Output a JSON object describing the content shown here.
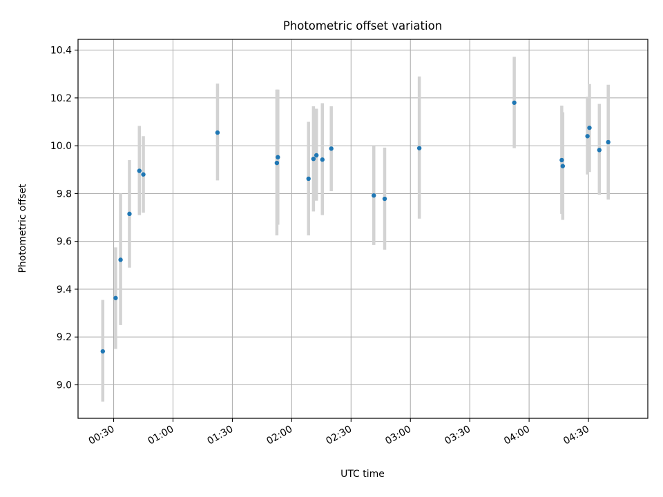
{
  "chart_data": {
    "type": "scatter",
    "title": "Photometric offset variation",
    "xlabel": "UTC time",
    "ylabel": "Photometric offset",
    "x_tick_labels": [
      "00:30",
      "01:00",
      "01:30",
      "02:00",
      "02:30",
      "03:00",
      "03:30",
      "04:00",
      "04:30"
    ],
    "y_tick_labels": [
      "9.0",
      "9.2",
      "9.4",
      "9.6",
      "9.8",
      "10.0",
      "10.2",
      "10.4"
    ],
    "x_ticks": [
      "00:30",
      "01:00",
      "01:30",
      "02:00",
      "02:30",
      "03:00",
      "03:30",
      "04:00",
      "04:30"
    ],
    "y_ticks": [
      9.0,
      9.2,
      9.4,
      9.6,
      9.8,
      10.0,
      10.2,
      10.4
    ],
    "xlim": [
      "00:12",
      "05:00"
    ],
    "ylim": [
      8.86,
      10.445
    ],
    "grid": true,
    "colors": {
      "points": "#1f77b4",
      "error_bars": "#d3d3d3",
      "grid": "#b0b0b0"
    },
    "series": [
      {
        "points": [
          {
            "t": "00:24:30",
            "y": 9.14,
            "lo": 8.93,
            "hi": 9.355
          },
          {
            "t": "00:31:00",
            "y": 9.363,
            "lo": 9.15,
            "hi": 9.575
          },
          {
            "t": "00:33:30",
            "y": 9.523,
            "lo": 9.25,
            "hi": 9.8
          },
          {
            "t": "00:38:00",
            "y": 9.715,
            "lo": 9.49,
            "hi": 9.94
          },
          {
            "t": "00:43:00",
            "y": 9.895,
            "lo": 9.71,
            "hi": 10.083
          },
          {
            "t": "00:45:00",
            "y": 9.88,
            "lo": 9.72,
            "hi": 10.04
          },
          {
            "t": "01:22:30",
            "y": 10.055,
            "lo": 9.855,
            "hi": 10.26
          },
          {
            "t": "01:52:30",
            "y": 9.928,
            "lo": 9.625,
            "hi": 10.235
          },
          {
            "t": "01:53:00",
            "y": 9.952,
            "lo": 9.67,
            "hi": 10.235
          },
          {
            "t": "02:08:30",
            "y": 9.862,
            "lo": 9.625,
            "hi": 10.1
          },
          {
            "t": "02:11:00",
            "y": 9.945,
            "lo": 9.725,
            "hi": 10.165
          },
          {
            "t": "02:12:30",
            "y": 9.96,
            "lo": 9.77,
            "hi": 10.155
          },
          {
            "t": "02:15:30",
            "y": 9.942,
            "lo": 9.71,
            "hi": 10.178
          },
          {
            "t": "02:20:00",
            "y": 9.988,
            "lo": 9.81,
            "hi": 10.165
          },
          {
            "t": "02:41:30",
            "y": 9.792,
            "lo": 9.585,
            "hi": 10.0
          },
          {
            "t": "02:47:00",
            "y": 9.778,
            "lo": 9.565,
            "hi": 9.992
          },
          {
            "t": "03:04:30",
            "y": 9.99,
            "lo": 9.695,
            "hi": 10.29
          },
          {
            "t": "03:52:30",
            "y": 10.18,
            "lo": 9.99,
            "hi": 10.372
          },
          {
            "t": "04:16:30",
            "y": 9.94,
            "lo": 9.715,
            "hi": 10.168
          },
          {
            "t": "04:17:00",
            "y": 9.915,
            "lo": 9.69,
            "hi": 10.14
          },
          {
            "t": "04:29:30",
            "y": 10.04,
            "lo": 9.88,
            "hi": 10.205
          },
          {
            "t": "04:30:30",
            "y": 10.075,
            "lo": 9.89,
            "hi": 10.258
          },
          {
            "t": "04:35:30",
            "y": 9.982,
            "lo": 9.795,
            "hi": 10.175
          },
          {
            "t": "04:40:00",
            "y": 10.015,
            "lo": 9.775,
            "hi": 10.255
          }
        ]
      }
    ]
  }
}
